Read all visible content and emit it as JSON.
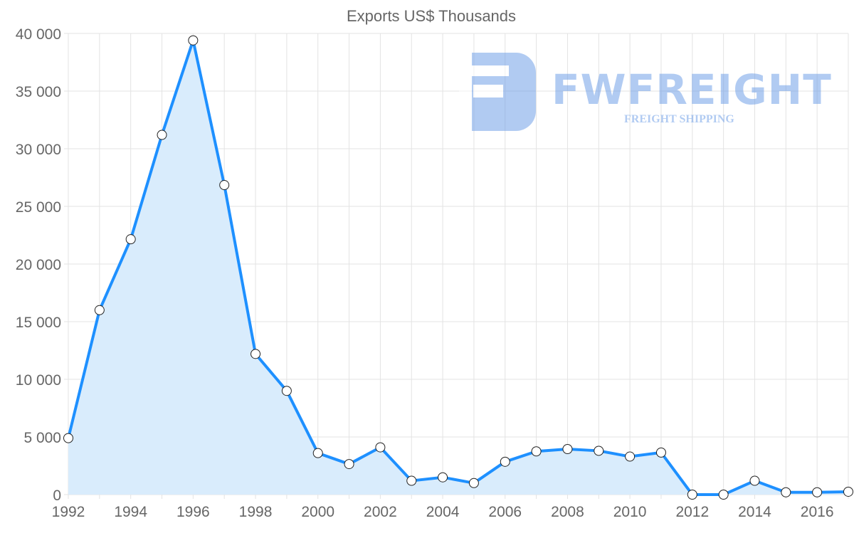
{
  "chart_data": {
    "type": "line",
    "title": "Exports US$ Thousands",
    "xlabel": "",
    "ylabel": "",
    "x": [
      1992,
      1993,
      1994,
      1995,
      1996,
      1997,
      1998,
      1999,
      2000,
      2001,
      2002,
      2003,
      2004,
      2005,
      2006,
      2007,
      2008,
      2009,
      2010,
      2011,
      2012,
      2013,
      2014,
      2015,
      2016,
      2017
    ],
    "series": [
      {
        "name": "Exports US$ Thousands",
        "values": [
          4900,
          16000,
          22150,
          31200,
          39400,
          26850,
          12200,
          9000,
          3600,
          2650,
          4100,
          1200,
          1500,
          1000,
          2850,
          3750,
          3950,
          3800,
          3300,
          3650,
          0,
          0,
          1200,
          200,
          200,
          250
        ],
        "color": "#1e90ff"
      }
    ],
    "xlim": [
      1992,
      2017
    ],
    "ylim": [
      0,
      40000
    ],
    "x_tick_labels": [
      "1992",
      "1994",
      "1996",
      "1998",
      "2000",
      "2002",
      "2004",
      "2006",
      "2008",
      "2010",
      "2012",
      "2014",
      "2016"
    ],
    "y_tick_labels": [
      "0",
      "5 000",
      "10 000",
      "15 000",
      "20 000",
      "25 000",
      "30 000",
      "35 000",
      "40 000"
    ],
    "grid": true,
    "fill": "#d9ecfc"
  },
  "watermark": {
    "name": "FWFREIGHT",
    "tagline": "FREIGHT SHIPPING"
  }
}
